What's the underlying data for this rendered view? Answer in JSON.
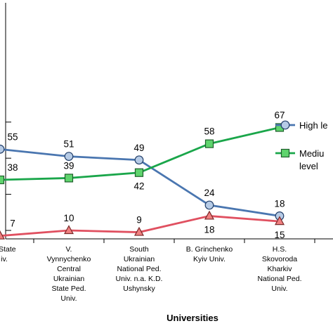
{
  "chart_data": {
    "type": "line",
    "categories": [
      [
        "n State",
        "iv."
      ],
      [
        "V.",
        "Vynnychenko",
        "Central",
        "Ukrainian",
        "State Ped.",
        "Univ."
      ],
      [
        "South",
        "Ukrainian",
        "National Ped.",
        "Univ. n.a. K.D.",
        "Ushynsky"
      ],
      [
        "B. Grinchenko",
        "Kyiv Univ."
      ],
      [
        "H.S.",
        "Skovoroda",
        "Kharkiv",
        "National Ped.",
        "Univ."
      ]
    ],
    "series": [
      {
        "name": "High le",
        "color": "#4a76b0",
        "marker": "circle",
        "fill": "#b6cbe6",
        "values": [
          55,
          51,
          49,
          24,
          18
        ],
        "label_pos": [
          "above",
          "above",
          "above",
          "above",
          "above"
        ]
      },
      {
        "name": "Mediu|level",
        "color": "#1aa64a",
        "marker": "square",
        "fill": "#5fd46d",
        "values": [
          38,
          39,
          42,
          58,
          67
        ],
        "label_pos": [
          "above",
          "above",
          "below",
          "above",
          "above"
        ]
      },
      {
        "name": "",
        "color": "#e05060",
        "marker": "triangle",
        "fill": "#f08080",
        "values": [
          7,
          10,
          9,
          18,
          15
        ],
        "label_pos": [
          "above",
          "above",
          "above",
          "below",
          "below"
        ]
      }
    ],
    "xlabel": "Universities",
    "ylabel": "",
    "title": "",
    "ylim": [
      5,
      80
    ],
    "yticks": [
      10,
      30,
      50,
      70
    ],
    "legend_position": "right",
    "grid": false
  }
}
